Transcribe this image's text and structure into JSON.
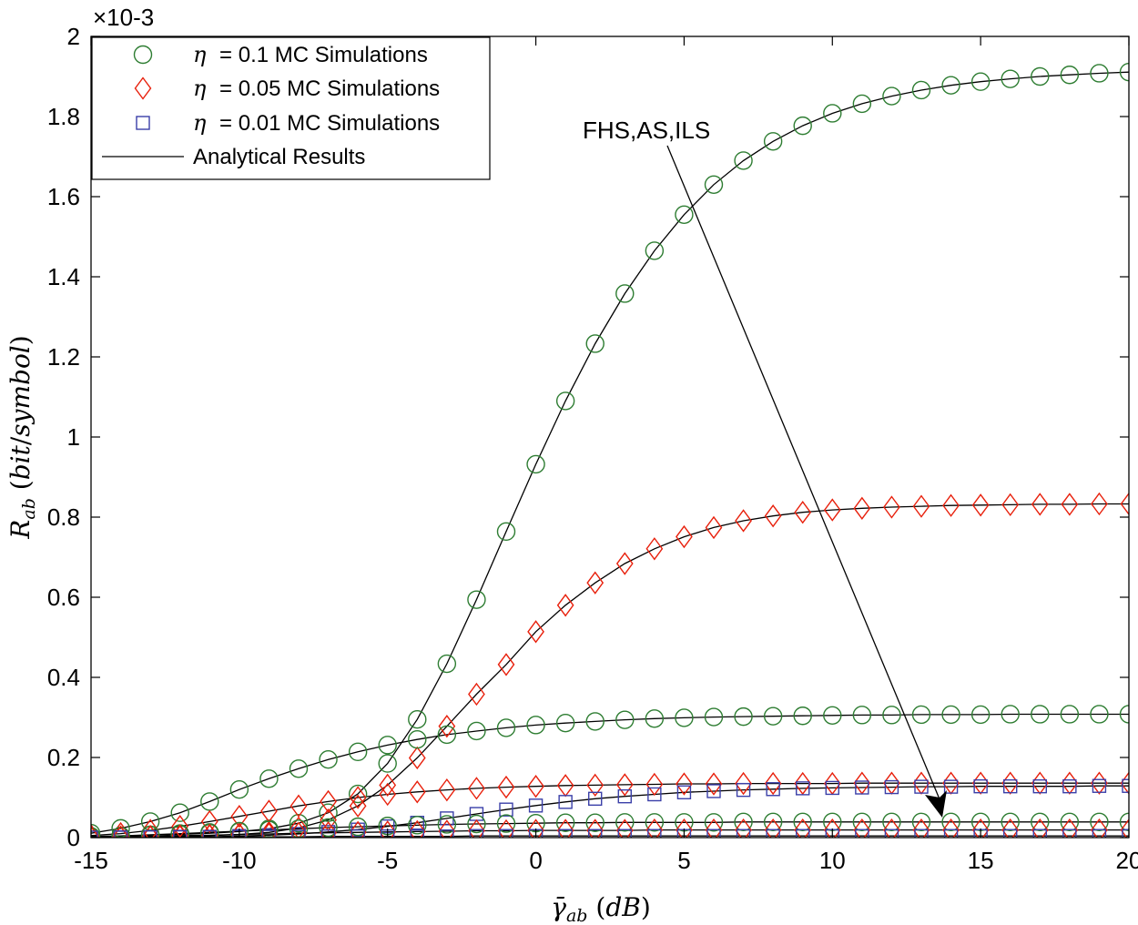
{
  "chart_data": {
    "type": "line",
    "xlabel": "γ̄ab (dB)",
    "ylabel": "Rab (bit/symbol)",
    "scale_label": "×10-3",
    "xlim": [
      -15,
      20
    ],
    "ylim": [
      0,
      2
    ],
    "x_ticks": [
      -15,
      -10,
      -5,
      0,
      5,
      10,
      15,
      20
    ],
    "y_ticks": [
      0,
      0.2,
      0.4,
      0.6,
      0.8,
      1,
      1.2,
      1.4,
      1.6,
      1.8,
      2
    ],
    "x_tick_labels": [
      "-15",
      "-10",
      "-5",
      "0",
      "5",
      "10",
      "15",
      "20"
    ],
    "y_tick_labels": [
      "0",
      "0.2",
      "0.4",
      "0.6",
      "0.8",
      "1",
      "1.2",
      "1.4",
      "1.6",
      "1.8",
      "2"
    ],
    "legend_position": "top-left",
    "grid": false,
    "annotation": "FHS,AS,ILS",
    "x": [
      -15,
      -14,
      -13,
      -12,
      -11,
      -10,
      -9,
      -8,
      -7,
      -6,
      -5,
      -4,
      -3,
      -2,
      -1,
      0,
      1,
      2,
      3,
      4,
      5,
      6,
      7,
      8,
      9,
      10,
      11,
      12,
      13,
      14,
      15,
      16,
      17,
      18,
      19,
      20
    ],
    "legend": [
      {
        "eta": "η",
        "label": " = 0.1 MC Simulations",
        "marker": "circle",
        "color": "#2e7d32"
      },
      {
        "eta": "η",
        "label": " = 0.05 MC Simulations",
        "marker": "diamond",
        "color": "#e8200c"
      },
      {
        "eta": "η",
        "label": " = 0.01 MC Simulations",
        "marker": "square",
        "color": "#3a3fa8"
      },
      {
        "eta": "",
        "label": "Analytical Results",
        "marker": "line",
        "color": "#000000"
      }
    ],
    "series": [
      {
        "marker": "circle",
        "color": "#2e7d32",
        "values": [
          0.003,
          0.004,
          0.006,
          0.008,
          0.011,
          0.015,
          0.022,
          0.036,
          0.062,
          0.109,
          0.185,
          0.295,
          0.434,
          0.594,
          0.764,
          0.932,
          1.09,
          1.233,
          1.358,
          1.465,
          1.555,
          1.63,
          1.69,
          1.738,
          1.777,
          1.808,
          1.832,
          1.851,
          1.866,
          1.878,
          1.887,
          1.894,
          1.9,
          1.904,
          1.908,
          1.911
        ]
      },
      {
        "marker": "diamond",
        "color": "#e8200c",
        "values": [
          0.001,
          0.001,
          0.002,
          0.003,
          0.005,
          0.008,
          0.013,
          0.024,
          0.044,
          0.079,
          0.131,
          0.199,
          0.278,
          0.358,
          0.432,
          0.514,
          0.58,
          0.636,
          0.684,
          0.721,
          0.751,
          0.774,
          0.791,
          0.803,
          0.812,
          0.818,
          0.822,
          0.825,
          0.827,
          0.829,
          0.83,
          0.831,
          0.832,
          0.832,
          0.833,
          0.833
        ]
      },
      {
        "marker": "circle",
        "color": "#2e7d32",
        "values": [
          0.011,
          0.023,
          0.04,
          0.062,
          0.09,
          0.12,
          0.147,
          0.172,
          0.195,
          0.214,
          0.231,
          0.245,
          0.257,
          0.266,
          0.274,
          0.281,
          0.286,
          0.29,
          0.294,
          0.297,
          0.299,
          0.301,
          0.302,
          0.303,
          0.304,
          0.305,
          0.306,
          0.306,
          0.307,
          0.307,
          0.307,
          0.308,
          0.308,
          0.308,
          0.308,
          0.308
        ]
      },
      {
        "marker": "diamond",
        "color": "#e8200c",
        "values": [
          0.005,
          0.01,
          0.018,
          0.028,
          0.04,
          0.053,
          0.066,
          0.079,
          0.09,
          0.1,
          0.108,
          0.114,
          0.119,
          0.123,
          0.126,
          0.128,
          0.13,
          0.131,
          0.132,
          0.133,
          0.134,
          0.134,
          0.135,
          0.135,
          0.135,
          0.135,
          0.136,
          0.136,
          0.136,
          0.136,
          0.136,
          0.136,
          0.136,
          0.136,
          0.136,
          0.136
        ]
      },
      {
        "marker": "square",
        "color": "#3a3fa8",
        "values": [
          0.0,
          0.001,
          0.001,
          0.002,
          0.002,
          0.004,
          0.006,
          0.009,
          0.014,
          0.02,
          0.028,
          0.037,
          0.048,
          0.059,
          0.07,
          0.08,
          0.089,
          0.097,
          0.103,
          0.108,
          0.113,
          0.116,
          0.119,
          0.121,
          0.123,
          0.124,
          0.125,
          0.126,
          0.127,
          0.127,
          0.128,
          0.128,
          0.128,
          0.128,
          0.129,
          0.129
        ]
      },
      {
        "marker": "circle",
        "color": "#2e7d32",
        "values": [
          0.002,
          0.004,
          0.007,
          0.01,
          0.013,
          0.016,
          0.019,
          0.022,
          0.025,
          0.027,
          0.029,
          0.031,
          0.033,
          0.034,
          0.035,
          0.036,
          0.037,
          0.037,
          0.038,
          0.038,
          0.038,
          0.038,
          0.039,
          0.039,
          0.039,
          0.039,
          0.039,
          0.039,
          0.039,
          0.039,
          0.039,
          0.039,
          0.039,
          0.039,
          0.039,
          0.039
        ]
      },
      {
        "marker": "diamond",
        "color": "#e8200c",
        "values": [
          0.001,
          0.002,
          0.003,
          0.005,
          0.006,
          0.008,
          0.009,
          0.011,
          0.012,
          0.013,
          0.014,
          0.015,
          0.016,
          0.017,
          0.017,
          0.018,
          0.018,
          0.018,
          0.018,
          0.019,
          0.019,
          0.019,
          0.019,
          0.019,
          0.019,
          0.019,
          0.019,
          0.019,
          0.019,
          0.019,
          0.019,
          0.019,
          0.019,
          0.019,
          0.019,
          0.019
        ]
      },
      {
        "marker": "square",
        "color": "#3a3fa8",
        "values": [
          0.0,
          0.0,
          0.001,
          0.001,
          0.001,
          0.002,
          0.002,
          0.002,
          0.003,
          0.003,
          0.003,
          0.003,
          0.003,
          0.004,
          0.004,
          0.004,
          0.004,
          0.004,
          0.004,
          0.004,
          0.004,
          0.004,
          0.004,
          0.004,
          0.004,
          0.004,
          0.004,
          0.004,
          0.004,
          0.004,
          0.004,
          0.004,
          0.004,
          0.004,
          0.004,
          0.004
        ]
      }
    ]
  }
}
